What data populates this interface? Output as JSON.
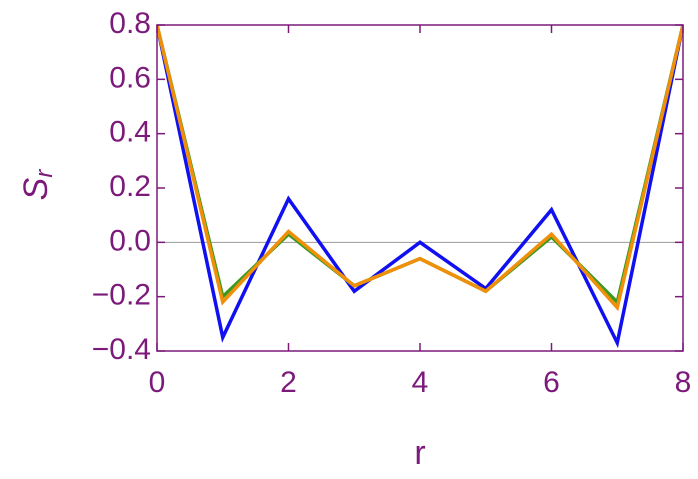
{
  "chart_data": {
    "type": "line",
    "xlabel": "r",
    "ylabel": "S",
    "ylabel_subscript": "r",
    "x": [
      0,
      1,
      2,
      3,
      4,
      5,
      6,
      7,
      8
    ],
    "series": [
      {
        "color": "#1010f0",
        "values": [
          0.8,
          -0.35,
          0.16,
          -0.18,
          0.0,
          -0.17,
          0.12,
          -0.37,
          0.8
        ]
      },
      {
        "color": "#3a9a20",
        "values": [
          0.8,
          -0.2,
          0.03,
          -0.16,
          -0.06,
          -0.18,
          0.02,
          -0.22,
          0.8
        ]
      },
      {
        "color": "#f0900a",
        "values": [
          0.8,
          -0.22,
          0.04,
          -0.16,
          -0.06,
          -0.18,
          0.03,
          -0.24,
          0.8
        ]
      }
    ],
    "xlim": [
      0,
      8
    ],
    "xticks": [
      0,
      2,
      4,
      6,
      8
    ],
    "ylim": [
      -0.4,
      0.8
    ],
    "yticks": [
      {
        "value": -0.4,
        "label": "−0.4"
      },
      {
        "value": -0.2,
        "label": "−0.2"
      },
      {
        "value": 0,
        "label": "0.0"
      },
      0.2,
      0.4,
      0.6,
      0.8
    ],
    "axis_color": "#7b1a7b"
  }
}
